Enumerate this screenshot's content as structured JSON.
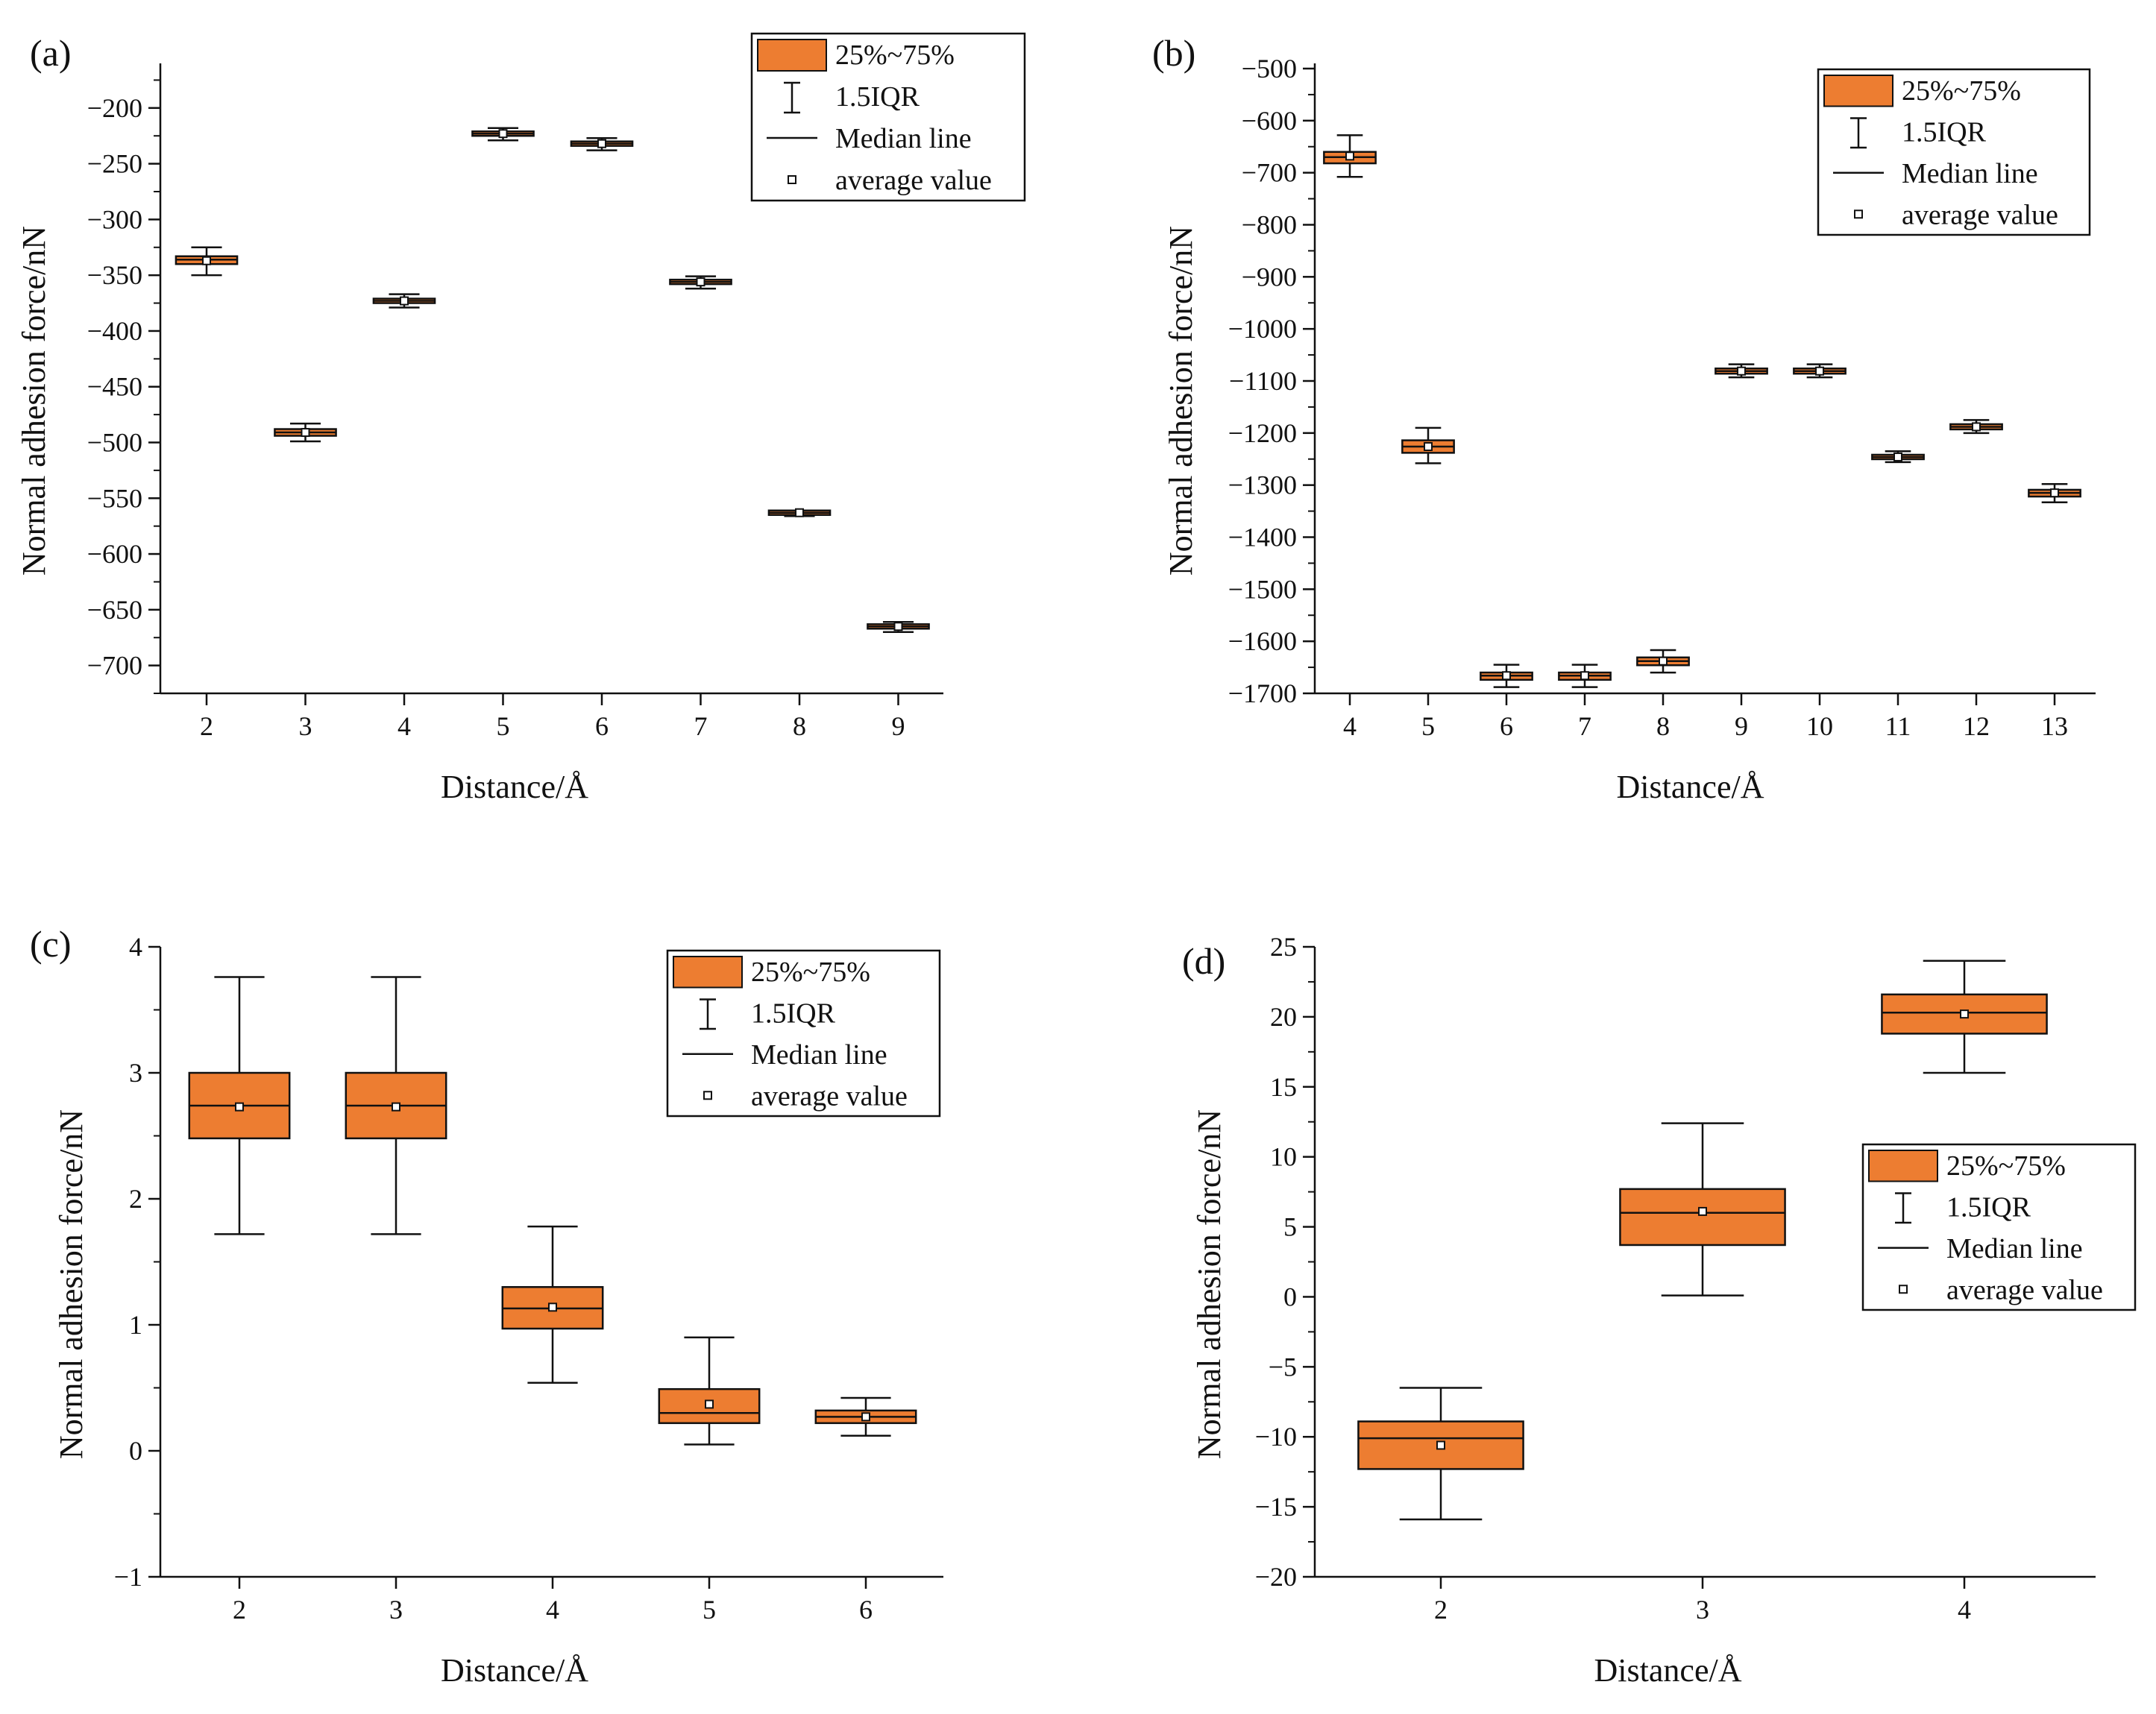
{
  "figure": {
    "colors": {
      "box_fill": "#ED7D31",
      "stroke": "#111111"
    },
    "legend_labels": {
      "box": "25%~75%",
      "whisker": "1.5IQR",
      "median": "Median line",
      "mean": "average value"
    }
  },
  "chart_data": [
    {
      "type": "box",
      "panel_label": "(a)",
      "xlabel": "Distance/Å",
      "ylabel": "Normal adhesion force/nN",
      "ylim": [
        -725,
        -160
      ],
      "yticks": [
        -200,
        -250,
        -300,
        -350,
        -400,
        -450,
        -500,
        -550,
        -600,
        -650,
        -700
      ],
      "yminor": 25,
      "legend_position": "top-right",
      "categories": [
        "2",
        "3",
        "4",
        "5",
        "6",
        "7",
        "8",
        "9"
      ],
      "boxes": [
        {
          "x": "2",
          "whisker_low": -350,
          "q1": -340,
          "median": -336,
          "q3": -333,
          "whisker_high": -325,
          "mean": -337
        },
        {
          "x": "3",
          "whisker_low": -499,
          "q1": -494,
          "median": -491,
          "q3": -488,
          "whisker_high": -483,
          "mean": -491
        },
        {
          "x": "4",
          "whisker_low": -379,
          "q1": -375,
          "median": -373,
          "q3": -371,
          "whisker_high": -367,
          "mean": -373
        },
        {
          "x": "5",
          "whisker_low": -229,
          "q1": -225,
          "median": -223,
          "q3": -221,
          "whisker_high": -218,
          "mean": -223
        },
        {
          "x": "6",
          "whisker_low": -238,
          "q1": -234,
          "median": -232,
          "q3": -230,
          "whisker_high": -227,
          "mean": -232
        },
        {
          "x": "7",
          "whisker_low": -362,
          "q1": -358,
          "median": -356,
          "q3": -354,
          "whisker_high": -351,
          "mean": -356
        },
        {
          "x": "8",
          "whisker_low": -566,
          "q1": -564,
          "median": -563,
          "q3": -562,
          "whisker_high": -561,
          "mean": -563
        },
        {
          "x": "9",
          "whisker_low": -670,
          "q1": -667,
          "median": -665,
          "q3": -663,
          "whisker_high": -661,
          "mean": -665
        }
      ]
    },
    {
      "type": "box",
      "panel_label": "(b)",
      "xlabel": "Distance/Å",
      "ylabel": "Normal adhesion force/nN",
      "ylim": [
        -1700,
        -490
      ],
      "yticks": [
        -500,
        -600,
        -700,
        -800,
        -900,
        -1000,
        -1100,
        -1200,
        -1300,
        -1400,
        -1500,
        -1600,
        -1700
      ],
      "yminor": 50,
      "legend_position": "top-right",
      "categories": [
        "4",
        "5",
        "6",
        "7",
        "8",
        "9",
        "10",
        "11",
        "12",
        "13"
      ],
      "boxes": [
        {
          "x": "4",
          "whisker_low": -708,
          "q1": -682,
          "median": -670,
          "q3": -660,
          "whisker_high": -628,
          "mean": -668
        },
        {
          "x": "5",
          "whisker_low": -1258,
          "q1": -1238,
          "median": -1226,
          "q3": -1214,
          "whisker_high": -1190,
          "mean": -1226
        },
        {
          "x": "6",
          "whisker_low": -1688,
          "q1": -1674,
          "median": -1666,
          "q3": -1660,
          "whisker_high": -1645,
          "mean": -1666
        },
        {
          "x": "7",
          "whisker_low": -1688,
          "q1": -1674,
          "median": -1666,
          "q3": -1660,
          "whisker_high": -1645,
          "mean": -1666
        },
        {
          "x": "8",
          "whisker_low": -1660,
          "q1": -1646,
          "median": -1638,
          "q3": -1631,
          "whisker_high": -1617,
          "mean": -1638
        },
        {
          "x": "9",
          "whisker_low": -1093,
          "q1": -1086,
          "median": -1081,
          "q3": -1076,
          "whisker_high": -1068,
          "mean": -1081
        },
        {
          "x": "10",
          "whisker_low": -1093,
          "q1": -1086,
          "median": -1081,
          "q3": -1076,
          "whisker_high": -1068,
          "mean": -1081
        },
        {
          "x": "11",
          "whisker_low": -1256,
          "q1": -1250,
          "median": -1246,
          "q3": -1242,
          "whisker_high": -1235,
          "mean": -1246
        },
        {
          "x": "12",
          "whisker_low": -1200,
          "q1": -1193,
          "median": -1188,
          "q3": -1183,
          "whisker_high": -1175,
          "mean": -1188
        },
        {
          "x": "13",
          "whisker_low": -1333,
          "q1": -1322,
          "median": -1315,
          "q3": -1309,
          "whisker_high": -1298,
          "mean": -1315
        }
      ]
    },
    {
      "type": "box",
      "panel_label": "(c)",
      "xlabel": "Distance/Å",
      "ylabel": "Normal adhesion force/nN",
      "ylim": [
        -1,
        4
      ],
      "yticks": [
        -1,
        0,
        1,
        2,
        3,
        4
      ],
      "yminor": 0.5,
      "legend_position": "top-right",
      "categories": [
        "2",
        "3",
        "4",
        "5",
        "6"
      ],
      "boxes": [
        {
          "x": "2",
          "whisker_low": 1.72,
          "q1": 2.48,
          "median": 2.74,
          "q3": 3.0,
          "whisker_high": 3.76,
          "mean": 2.73
        },
        {
          "x": "3",
          "whisker_low": 1.72,
          "q1": 2.48,
          "median": 2.74,
          "q3": 3.0,
          "whisker_high": 3.76,
          "mean": 2.73
        },
        {
          "x": "4",
          "whisker_low": 0.54,
          "q1": 0.97,
          "median": 1.13,
          "q3": 1.3,
          "whisker_high": 1.78,
          "mean": 1.14
        },
        {
          "x": "5",
          "whisker_low": 0.05,
          "q1": 0.22,
          "median": 0.3,
          "q3": 0.49,
          "whisker_high": 0.9,
          "mean": 0.37
        },
        {
          "x": "6",
          "whisker_low": 0.12,
          "q1": 0.22,
          "median": 0.27,
          "q3": 0.32,
          "whisker_high": 0.42,
          "mean": 0.27
        }
      ]
    },
    {
      "type": "box",
      "panel_label": "(d)",
      "xlabel": "Distance/Å",
      "ylabel": "Normal adhesion force/nN",
      "ylim": [
        -20,
        25
      ],
      "yticks": [
        -20,
        -15,
        -10,
        -5,
        0,
        5,
        10,
        15,
        20,
        25
      ],
      "yminor": 2.5,
      "legend_position": "center-right",
      "categories": [
        "2",
        "3",
        "4"
      ],
      "boxes": [
        {
          "x": "2",
          "whisker_low": -15.9,
          "q1": -12.3,
          "median": -10.1,
          "q3": -8.9,
          "whisker_high": -6.5,
          "mean": -10.6
        },
        {
          "x": "3",
          "whisker_low": 0.1,
          "q1": 3.7,
          "median": 6.0,
          "q3": 7.7,
          "whisker_high": 12.4,
          "mean": 6.1
        },
        {
          "x": "4",
          "whisker_low": 16.0,
          "q1": 18.8,
          "median": 20.3,
          "q3": 21.6,
          "whisker_high": 24.0,
          "mean": 20.2
        }
      ]
    }
  ]
}
